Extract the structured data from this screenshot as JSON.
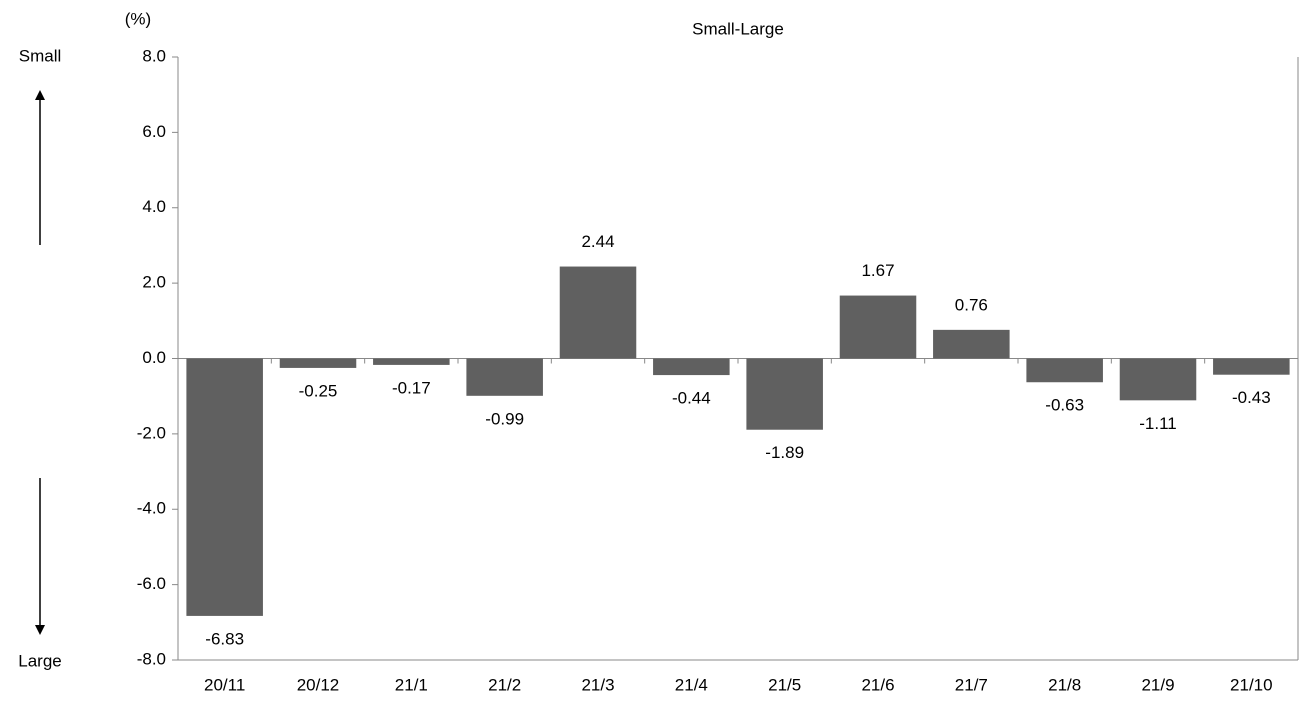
{
  "chart_data": {
    "type": "bar",
    "title": "Small-Large",
    "y_label": "(%)",
    "annotations": [
      "Small",
      "Large"
    ],
    "categories": [
      "20/11",
      "20/12",
      "21/1",
      "21/2",
      "21/3",
      "21/4",
      "21/5",
      "21/6",
      "21/7",
      "21/8",
      "21/9",
      "21/10"
    ],
    "values": [
      -6.83,
      -0.25,
      -0.17,
      -0.99,
      2.44,
      -0.44,
      -1.89,
      1.67,
      0.76,
      -0.63,
      -1.11,
      -0.43
    ],
    "color": "#606060",
    "ylim": [
      -8,
      8
    ],
    "yticks": [
      {
        "value": -8,
        "label": "-8.0"
      },
      {
        "value": -6,
        "label": "-6.0"
      },
      {
        "value": -4,
        "label": "-4.0"
      },
      {
        "value": -2,
        "label": "-2.0"
      },
      {
        "value": 0,
        "label": "0.0"
      },
      {
        "value": 2,
        "label": "2.0"
      },
      {
        "value": 4,
        "label": "4.0"
      },
      {
        "value": 6,
        "label": "6.0"
      },
      {
        "value": 8,
        "label": "8.0"
      }
    ],
    "grid": false
  }
}
